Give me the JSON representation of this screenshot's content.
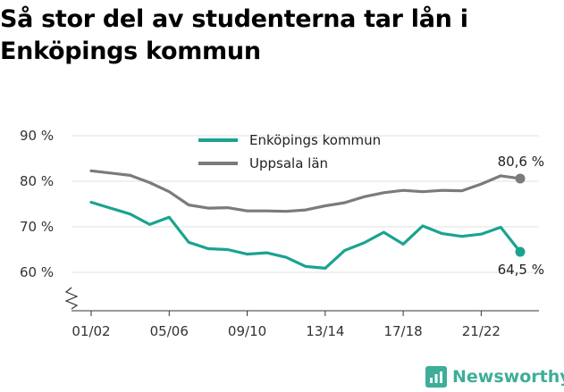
{
  "title_lines": [
    "Så stor del av studenterna tar lån i",
    "Enköpings kommun"
  ],
  "logo_text": "Newsworthy",
  "chart_data": {
    "type": "line",
    "title": "Så stor del av studenterna tar lån i Enköpings kommun",
    "xlabel": "",
    "ylabel": "",
    "ylim": [
      50,
      95
    ],
    "yticks": [
      60,
      70,
      80,
      90
    ],
    "ytick_labels": [
      "60 %",
      "70 %",
      "80 %",
      "90 %"
    ],
    "x_tick_labels": [
      "01/02",
      "05/06",
      "09/10",
      "13/14",
      "17/18",
      "21/22"
    ],
    "x_tick_index": [
      0,
      4,
      8,
      12,
      16,
      20
    ],
    "x": [
      "01/02",
      "02/03",
      "03/04",
      "04/05",
      "05/06",
      "06/07",
      "07/08",
      "08/09",
      "09/10",
      "10/11",
      "11/12",
      "12/13",
      "13/14",
      "14/15",
      "15/16",
      "16/17",
      "17/18",
      "18/19",
      "19/20",
      "20/21",
      "21/22",
      "22/23",
      "23/24"
    ],
    "legend_position": "top",
    "grid": true,
    "y_axis_break": true,
    "series": [
      {
        "name": "Enköpings kommun",
        "color": "#1aa391",
        "values": [
          75.4,
          74.1,
          72.8,
          70.5,
          72.1,
          66.6,
          65.2,
          65.0,
          64.0,
          64.3,
          63.3,
          61.3,
          60.9,
          64.8,
          66.5,
          68.8,
          66.2,
          70.2,
          68.5,
          67.9,
          68.4,
          69.9,
          64.5
        ],
        "end_label": "64,5 %"
      },
      {
        "name": "Uppsala län",
        "color": "#7b7b7e",
        "values": [
          82.3,
          81.8,
          81.3,
          79.7,
          77.7,
          74.8,
          74.1,
          74.2,
          73.5,
          73.5,
          73.4,
          73.7,
          74.6,
          75.3,
          76.6,
          77.5,
          78.0,
          77.7,
          78.0,
          77.9,
          79.4,
          81.2,
          80.6
        ],
        "end_label": "80,6 %"
      }
    ]
  }
}
